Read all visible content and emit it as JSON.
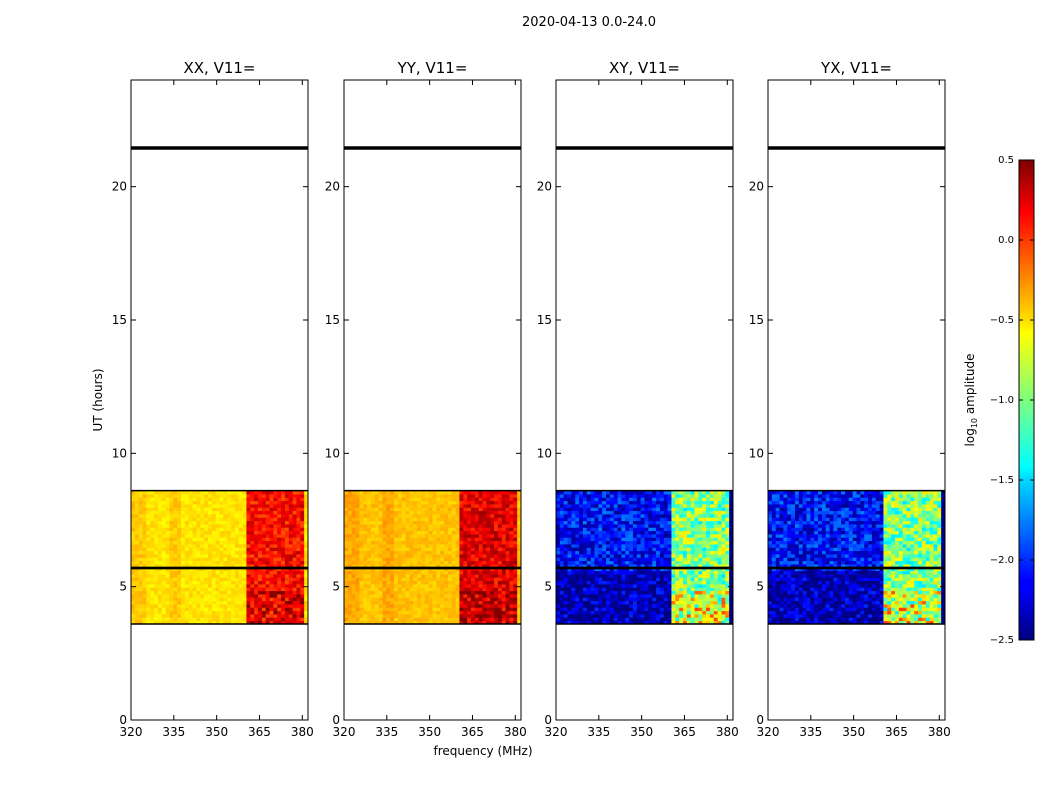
{
  "chart_data": {
    "type": "heatmap",
    "suptitle": "2020-04-13 0.0-24.0",
    "xlabel": "frequency (MHz)",
    "ylabel": "UT (hours)",
    "xlim": [
      320,
      382
    ],
    "ylim": [
      0,
      24
    ],
    "xticks": [
      320,
      335,
      350,
      365,
      380
    ],
    "yticks": [
      0,
      5,
      10,
      15,
      20
    ],
    "data_time_range": [
      3.6,
      8.6
    ],
    "gap_hours": [
      5.65,
      5.75
    ],
    "flagged_line_hours": [
      21.45
    ],
    "rfi_band_mhz": [
      360,
      380
    ],
    "colorbar": {
      "label_prefix": "log",
      "label_subscript": "10",
      "label_suffix": " amplitude",
      "colormap": "jet",
      "range": [
        -2.5,
        0.5
      ],
      "ticks": [
        0.5,
        0.0,
        -0.5,
        -1.0,
        -1.5,
        -2.0,
        -2.5
      ],
      "tick_labels": [
        "0.5",
        "0.0",
        "−0.5",
        "−1.0",
        "−1.5",
        "−2.0",
        "−2.5"
      ]
    },
    "panels": [
      {
        "title": "XX, V11=",
        "mean_level_log10": -0.55,
        "rfi_level_log10": 0.1
      },
      {
        "title": "YY, V11=",
        "mean_level_log10": -0.45,
        "rfi_level_log10": 0.2
      },
      {
        "title": "XY, V11=",
        "mean_level_log10": -2.1,
        "rfi_level_log10": -1.0
      },
      {
        "title": "YX, V11=",
        "mean_level_log10": -2.1,
        "rfi_level_log10": -1.0
      }
    ]
  }
}
